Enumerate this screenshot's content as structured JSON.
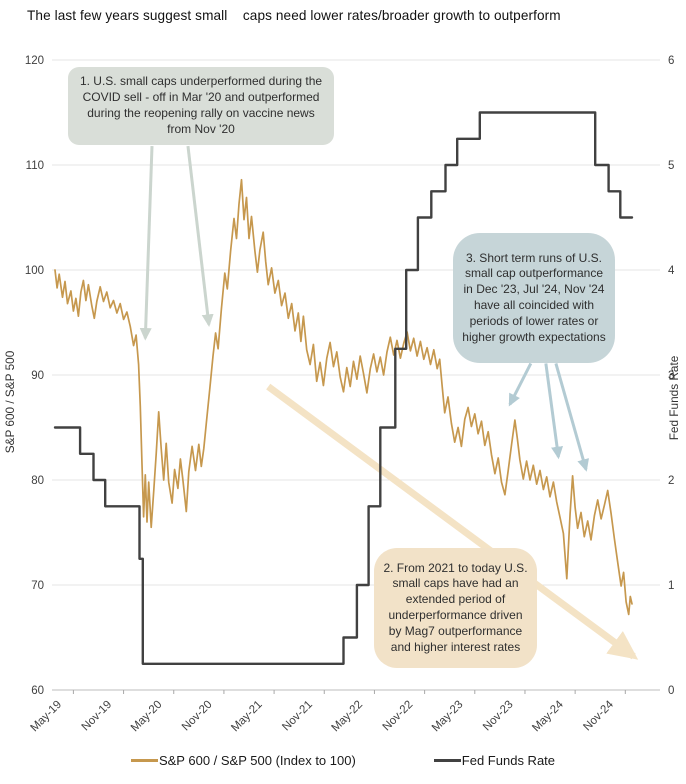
{
  "title": "The last few years suggest small    caps need lower rates/broader growth to outperform",
  "legend": {
    "items": [
      {
        "label": "S&P 600 / S&P 500 (Index to 100)"
      },
      {
        "label": "Fed Funds Rate"
      }
    ]
  },
  "colors": {
    "ratio_line": "#c6984e",
    "fed_line": "#414141",
    "gridline": "#e4e4e4",
    "axis_line": "#c9c9c9",
    "tick_mark": "#a8a8a8",
    "tick_label": "#3f3f3f",
    "callout_1_bg": "#d9ded8",
    "callout_2_bg": "#f2e2c8",
    "callout_3_bg": "#c6d5d8",
    "arrow_green": "#cbd5ce",
    "arrow_blue": "#b3cbd3",
    "arrow_tan": "#f4e3c5"
  },
  "chart_data": {
    "type": "line",
    "title": "The last few years suggest small caps need lower rates/broader growth to outperform",
    "x_axis": {
      "unit": "months since May 2019",
      "range": [
        0,
        69
      ],
      "tick_months": [
        0,
        6,
        12,
        18,
        24,
        30,
        36,
        42,
        48,
        54,
        60,
        66
      ],
      "tick_labels": [
        "May-19",
        "Nov-19",
        "May-20",
        "Nov-20",
        "May-21",
        "Nov-21",
        "May-22",
        "Nov-22",
        "May-23",
        "Nov-23",
        "May-24",
        "Nov-24"
      ],
      "tick_mark_offset_months": 2.2
    },
    "y_left": {
      "label": "S&P 600 / S&P 500",
      "range": [
        60,
        120
      ],
      "ticks": [
        120,
        110,
        100,
        90,
        80,
        70,
        60
      ]
    },
    "y_right": {
      "label": "Fed Funds Rate",
      "range": [
        0,
        6
      ],
      "ticks": [
        6,
        5,
        4,
        3,
        2,
        1,
        0
      ]
    },
    "grid": true,
    "legend_position": "bottom",
    "series": [
      {
        "name": "S&P 600 / S&P 500 (Index to 100)",
        "axis": "left",
        "color": "#c6984e",
        "width": 1.7,
        "points": [
          [
            0,
            100
          ],
          [
            0.25,
            98.3
          ],
          [
            0.5,
            99.6
          ],
          [
            0.9,
            97.4
          ],
          [
            1.2,
            98.9
          ],
          [
            1.5,
            96.8
          ],
          [
            1.9,
            98
          ],
          [
            2.2,
            96.1
          ],
          [
            2.5,
            97.3
          ],
          [
            2.8,
            95.6
          ],
          [
            3.1,
            97.9
          ],
          [
            3.4,
            99
          ],
          [
            3.7,
            97.1
          ],
          [
            4,
            98.6
          ],
          [
            4.4,
            96.6
          ],
          [
            4.7,
            95.4
          ],
          [
            5,
            97
          ],
          [
            5.4,
            98.4
          ],
          [
            5.8,
            97
          ],
          [
            6.2,
            97.9
          ],
          [
            6.6,
            96.4
          ],
          [
            7,
            97.1
          ],
          [
            7.4,
            95.9
          ],
          [
            7.8,
            96.8
          ],
          [
            8.2,
            95.3
          ],
          [
            8.6,
            96
          ],
          [
            9,
            94.6
          ],
          [
            9.4,
            92.8
          ],
          [
            9.7,
            93.8
          ],
          [
            10,
            91
          ],
          [
            10.2,
            87
          ],
          [
            10.4,
            81.5
          ],
          [
            10.6,
            76.5
          ],
          [
            10.8,
            80.5
          ],
          [
            11,
            76
          ],
          [
            11.2,
            79.8
          ],
          [
            11.5,
            75.5
          ],
          [
            11.8,
            78.9
          ],
          [
            12.1,
            82.5
          ],
          [
            12.4,
            86.5
          ],
          [
            12.7,
            83
          ],
          [
            13,
            80
          ],
          [
            13.3,
            83.5
          ],
          [
            13.6,
            79.8
          ],
          [
            14,
            77.8
          ],
          [
            14.3,
            81
          ],
          [
            14.7,
            79.2
          ],
          [
            15,
            82
          ],
          [
            15.3,
            80
          ],
          [
            15.7,
            77
          ],
          [
            16,
            80.8
          ],
          [
            16.4,
            83.2
          ],
          [
            16.8,
            80.9
          ],
          [
            17.2,
            83.4
          ],
          [
            17.5,
            81.3
          ],
          [
            17.8,
            83
          ],
          [
            18.1,
            85.5
          ],
          [
            18.5,
            88.6
          ],
          [
            18.9,
            91.8
          ],
          [
            19.2,
            94
          ],
          [
            19.5,
            92.5
          ],
          [
            19.9,
            96.3
          ],
          [
            20.3,
            99.7
          ],
          [
            20.6,
            98.2
          ],
          [
            21,
            101.8
          ],
          [
            21.4,
            104.9
          ],
          [
            21.7,
            103
          ],
          [
            22,
            106.3
          ],
          [
            22.3,
            108.6
          ],
          [
            22.6,
            104.8
          ],
          [
            22.9,
            106.9
          ],
          [
            23.2,
            103
          ],
          [
            23.5,
            105.1
          ],
          [
            23.9,
            101.8
          ],
          [
            24.2,
            99.8
          ],
          [
            24.5,
            101.9
          ],
          [
            24.9,
            103.6
          ],
          [
            25.2,
            100.8
          ],
          [
            25.5,
            98.6
          ],
          [
            25.9,
            100.2
          ],
          [
            26.3,
            97.8
          ],
          [
            26.7,
            99
          ],
          [
            27.1,
            96.6
          ],
          [
            27.5,
            97.8
          ],
          [
            27.9,
            95.4
          ],
          [
            28.3,
            96.8
          ],
          [
            28.7,
            94.2
          ],
          [
            29.1,
            95.9
          ],
          [
            29.4,
            93.2
          ],
          [
            29.7,
            95.6
          ],
          [
            30.1,
            92.4
          ],
          [
            30.5,
            91
          ],
          [
            30.9,
            92.9
          ],
          [
            31.3,
            89.4
          ],
          [
            31.7,
            91.2
          ],
          [
            32.1,
            89
          ],
          [
            32.5,
            91.6
          ],
          [
            32.9,
            93.1
          ],
          [
            33.3,
            90.8
          ],
          [
            33.7,
            92.2
          ],
          [
            34.1,
            89.8
          ],
          [
            34.5,
            88.4
          ],
          [
            34.9,
            90.7
          ],
          [
            35.3,
            88.9
          ],
          [
            35.7,
            91.3
          ],
          [
            36.1,
            89.6
          ],
          [
            36.5,
            91.8
          ],
          [
            36.9,
            90.1
          ],
          [
            37.3,
            88.3
          ],
          [
            37.7,
            90.6
          ],
          [
            38.1,
            92
          ],
          [
            38.5,
            90.3
          ],
          [
            38.9,
            91.7
          ],
          [
            39.3,
            90
          ],
          [
            39.7,
            92.2
          ],
          [
            40.1,
            93.6
          ],
          [
            40.5,
            91.9
          ],
          [
            40.9,
            93.3
          ],
          [
            41.3,
            91.6
          ],
          [
            41.7,
            93
          ],
          [
            42.1,
            94.1
          ],
          [
            42.5,
            92.3
          ],
          [
            42.9,
            93.5
          ],
          [
            43.3,
            91.8
          ],
          [
            43.7,
            93.2
          ],
          [
            44.1,
            91.5
          ],
          [
            44.5,
            92.6
          ],
          [
            44.9,
            91
          ],
          [
            45.3,
            92.4
          ],
          [
            45.7,
            90.6
          ],
          [
            46,
            91.5
          ],
          [
            46.3,
            88.9
          ],
          [
            46.6,
            86.4
          ],
          [
            47,
            87.9
          ],
          [
            47.4,
            85.4
          ],
          [
            47.8,
            83.6
          ],
          [
            48.2,
            85
          ],
          [
            48.6,
            83.2
          ],
          [
            49,
            85.8
          ],
          [
            49.4,
            86.9
          ],
          [
            49.8,
            85.1
          ],
          [
            50.2,
            86.3
          ],
          [
            50.6,
            84.4
          ],
          [
            51,
            85.6
          ],
          [
            51.4,
            83.3
          ],
          [
            51.8,
            84.6
          ],
          [
            52.2,
            82.4
          ],
          [
            52.6,
            80.6
          ],
          [
            53,
            82.1
          ],
          [
            53.4,
            79.8
          ],
          [
            53.8,
            78.6
          ],
          [
            54.2,
            80.9
          ],
          [
            54.6,
            83.4
          ],
          [
            55,
            85.7
          ],
          [
            55.3,
            83.9
          ],
          [
            55.6,
            81.9
          ],
          [
            56,
            80.1
          ],
          [
            56.4,
            81.8
          ],
          [
            56.8,
            80
          ],
          [
            57.2,
            81.4
          ],
          [
            57.6,
            79.6
          ],
          [
            58,
            80.9
          ],
          [
            58.4,
            79.1
          ],
          [
            58.8,
            80.3
          ],
          [
            59.2,
            78.4
          ],
          [
            59.6,
            79.8
          ],
          [
            60,
            77.9
          ],
          [
            60.4,
            76.4
          ],
          [
            60.8,
            74.9
          ],
          [
            61.2,
            70.6
          ],
          [
            61.6,
            76.8
          ],
          [
            61.9,
            80.4
          ],
          [
            62.2,
            77.4
          ],
          [
            62.5,
            75.4
          ],
          [
            62.9,
            76.9
          ],
          [
            63.3,
            74.6
          ],
          [
            63.7,
            76.1
          ],
          [
            64.1,
            74.3
          ],
          [
            64.5,
            76.6
          ],
          [
            64.9,
            78.1
          ],
          [
            65.3,
            76.3
          ],
          [
            65.7,
            77.6
          ],
          [
            66.1,
            79
          ],
          [
            66.5,
            76.8
          ],
          [
            66.9,
            74.4
          ],
          [
            67.3,
            72.1
          ],
          [
            67.7,
            69.9
          ],
          [
            68,
            71.2
          ],
          [
            68.3,
            68.4
          ],
          [
            68.6,
            67.2
          ],
          [
            68.8,
            68.9
          ],
          [
            69,
            68.2
          ]
        ]
      },
      {
        "name": "Fed Funds Rate",
        "axis": "right",
        "color": "#414141",
        "width": 2.4,
        "points": [
          [
            0,
            2.5
          ],
          [
            3,
            2.5
          ],
          [
            3,
            2.25
          ],
          [
            4.6,
            2.25
          ],
          [
            4.6,
            2
          ],
          [
            6,
            2
          ],
          [
            6,
            1.75
          ],
          [
            10.1,
            1.75
          ],
          [
            10.1,
            1.25
          ],
          [
            10.5,
            1.25
          ],
          [
            10.5,
            0.25
          ],
          [
            34.5,
            0.25
          ],
          [
            34.5,
            0.5
          ],
          [
            36.1,
            0.5
          ],
          [
            36.1,
            1
          ],
          [
            37.5,
            1
          ],
          [
            37.5,
            1.75
          ],
          [
            38.9,
            1.75
          ],
          [
            38.9,
            2.5
          ],
          [
            40.7,
            2.5
          ],
          [
            40.7,
            3.25
          ],
          [
            42,
            3.25
          ],
          [
            42,
            4
          ],
          [
            43.4,
            4
          ],
          [
            43.4,
            4.5
          ],
          [
            45,
            4.5
          ],
          [
            45,
            4.75
          ],
          [
            46.7,
            4.75
          ],
          [
            46.7,
            5
          ],
          [
            48.1,
            5
          ],
          [
            48.1,
            5.25
          ],
          [
            50.8,
            5.25
          ],
          [
            50.8,
            5.5
          ],
          [
            64.6,
            5.5
          ],
          [
            64.6,
            5
          ],
          [
            66.2,
            5
          ],
          [
            66.2,
            4.75
          ],
          [
            67.6,
            4.75
          ],
          [
            67.6,
            4.5
          ],
          [
            69,
            4.5
          ]
        ]
      }
    ],
    "annotations": {
      "callouts": [
        {
          "id": 1,
          "text": "1. U.S. small caps underperformed during the COVID sell - off in Mar '20 and outperformed during the reopening rally on vaccine news from Nov '20",
          "bg": "#d9ded8"
        },
        {
          "id": 2,
          "text": "2. From 2021 to today U.S. small caps have had an extended period of underperformance driven by Mag7 outperformance and higher interest rates",
          "bg": "#f2e2c8"
        },
        {
          "id": 3,
          "text": "3. Short term runs of U.S. small cap outperformance in Dec '23, Jul '24, Nov '24 have all coincided with periods of lower rates or higher growth expectations",
          "bg": "#c6d5d8"
        }
      ],
      "arrows": [
        {
          "name": "covid-selloff-arrow",
          "color": "#cbd5ce",
          "width": 3,
          "layer": "front",
          "from": [
            11.6,
            111.8
          ],
          "to": [
            10.8,
            93.5
          ]
        },
        {
          "name": "vaccine-rally-arrow",
          "color": "#cbd5ce",
          "width": 3,
          "layer": "front",
          "from": [
            15.9,
            111.8
          ],
          "to": [
            18.4,
            94.8
          ]
        },
        {
          "name": "dec-23-arrow",
          "color": "#b3cbd3",
          "width": 3,
          "layer": "front",
          "from": [
            56.9,
            91.1
          ],
          "to": [
            54.4,
            87.2
          ]
        },
        {
          "name": "jul-24-arrow",
          "color": "#b3cbd3",
          "width": 3,
          "layer": "front",
          "from": [
            58.7,
            91.1
          ],
          "to": [
            60.2,
            82.2
          ]
        },
        {
          "name": "nov-24-arrow",
          "color": "#b3cbd3",
          "width": 3,
          "layer": "front",
          "from": [
            59.9,
            91.1
          ],
          "to": [
            63.5,
            81.0
          ]
        },
        {
          "name": "downtrend-arrow",
          "color": "#f4e3c5",
          "width": 7,
          "layer": "back",
          "from": [
            25.5,
            88.9
          ],
          "to": [
            69.2,
            63.2
          ]
        }
      ]
    }
  }
}
